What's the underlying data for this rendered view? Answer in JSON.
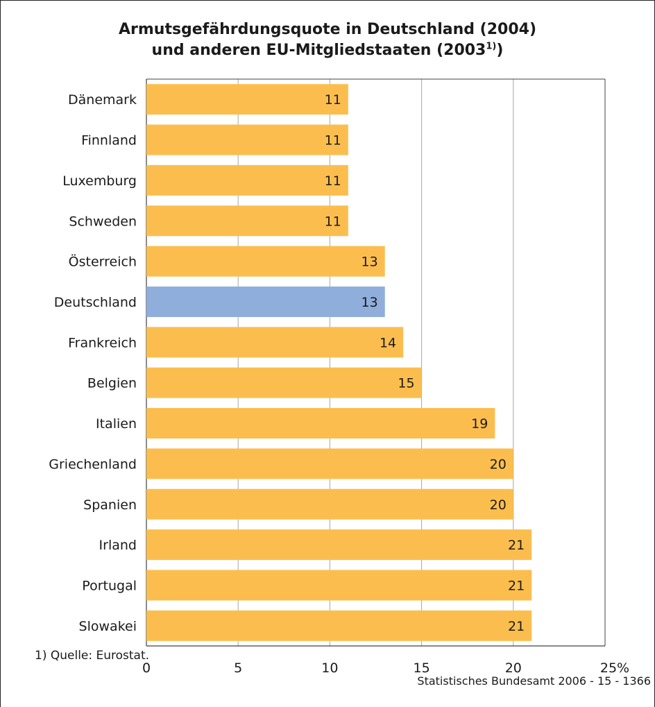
{
  "chart_data": {
    "type": "bar",
    "orientation": "horizontal",
    "title_line1": "Armutsgefährdungsquote in Deutschland (2004)",
    "title_line2": "und anderen EU-Mitgliedstaaten (2003",
    "title_sup": "1)",
    "title_line2_end": ")",
    "categories": [
      "Dänemark",
      "Finnland",
      "Luxemburg",
      "Schweden",
      "Österreich",
      "Deutschland",
      "Frankreich",
      "Belgien",
      "Italien",
      "Griechenland",
      "Spanien",
      "Irland",
      "Portugal",
      "Slowakei"
    ],
    "values": [
      11,
      11,
      11,
      11,
      13,
      13,
      14,
      15,
      19,
      20,
      20,
      21,
      21,
      21
    ],
    "highlight": "Deutschland",
    "xlim": [
      0,
      25
    ],
    "xticks": [
      0,
      5,
      10,
      15,
      20,
      25
    ],
    "xtick_labels": [
      "0",
      "5",
      "10",
      "15",
      "20",
      "25%"
    ],
    "grid": "vertical",
    "colors": {
      "bar": "#FBBE4E",
      "highlight": "#8FAEDB",
      "grid": "#a6a6a6",
      "axis": "#404040"
    }
  },
  "footnote": "1) Quelle: Eurostat.",
  "source": "Statistisches Bundesamt 2006 - 15 - 1366"
}
